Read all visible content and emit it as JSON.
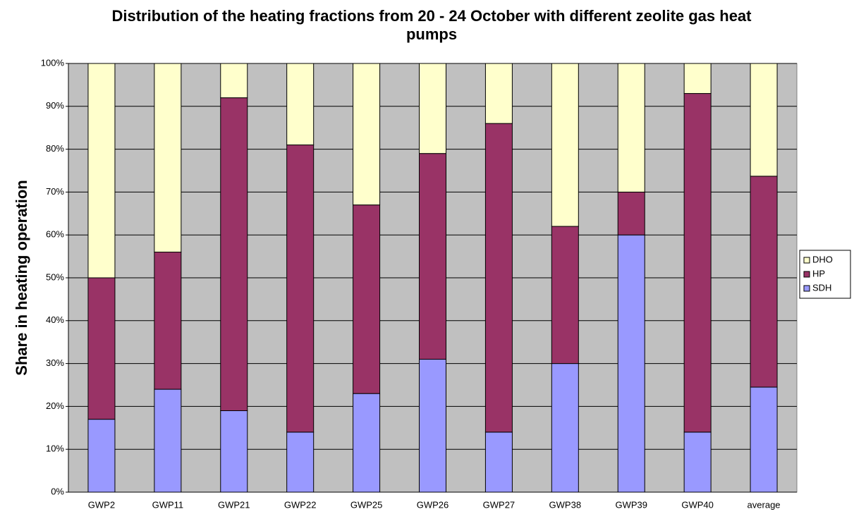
{
  "chart_data": {
    "type": "stacked_bar",
    "title": "Distribution of the heating fractions from 20 - 24 October with different zeolite gas heat pumps",
    "y_label": "Share in heating operation",
    "categories": [
      "GWP2",
      "GWP11",
      "GWP21",
      "GWP22",
      "GWP25",
      "GWP26",
      "GWP27",
      "GWP38",
      "GWP39",
      "GWP40",
      "average"
    ],
    "series": [
      {
        "name": "SDH",
        "color": "#9999ff",
        "values": [
          17,
          24,
          19,
          14,
          23,
          31,
          14,
          30,
          60,
          14,
          24.5
        ]
      },
      {
        "name": "HP",
        "color": "#993366",
        "values": [
          33,
          32,
          73,
          67,
          44,
          48,
          72,
          32,
          10,
          79,
          49.2
        ]
      },
      {
        "name": "DHO",
        "color": "#ffffcc",
        "values": [
          50,
          44,
          8,
          19,
          33,
          21,
          14,
          38,
          30,
          7,
          26.3
        ]
      }
    ],
    "ylim": [
      0,
      100
    ],
    "yticks": [
      {
        "value": 0,
        "label": "0%"
      },
      {
        "value": 10,
        "label": "10%"
      },
      {
        "value": 20,
        "label": "20%"
      },
      {
        "value": 30,
        "label": "30%"
      },
      {
        "value": 40,
        "label": "40%"
      },
      {
        "value": 50,
        "label": "50%"
      },
      {
        "value": 60,
        "label": "60%"
      },
      {
        "value": 70,
        "label": "70%"
      },
      {
        "value": 80,
        "label": "80%"
      },
      {
        "value": 90,
        "label": "90%"
      },
      {
        "value": 100,
        "label": "100%"
      }
    ],
    "grid": true,
    "legend": "right"
  }
}
